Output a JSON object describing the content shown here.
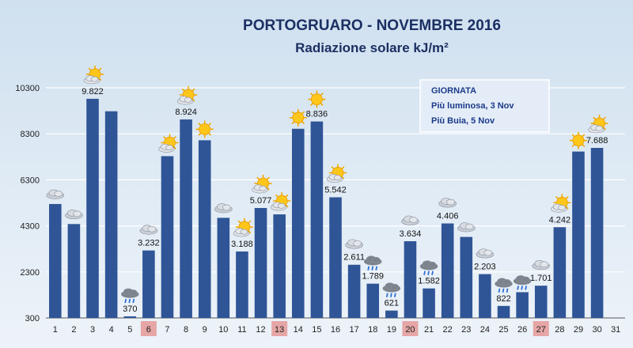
{
  "chart_data": {
    "type": "bar",
    "title": "PORTOGRUARO - NOVEMBRE 2016",
    "subtitle": "Radiazione solare kJ/m²",
    "xlabel": "",
    "ylabel": "",
    "ylim": [
      300,
      10300
    ],
    "yticks": [
      "10300",
      "8300",
      "6300",
      "4300",
      "2300",
      "300"
    ],
    "grid": true,
    "categories": [
      "1",
      "2",
      "3",
      "4",
      "5",
      "6",
      "7",
      "8",
      "9",
      "10",
      "11",
      "12",
      "13",
      "14",
      "15",
      "16",
      "17",
      "18",
      "19",
      "20",
      "21",
      "22",
      "23",
      "24",
      "25",
      "26",
      "27",
      "28",
      "29",
      "30",
      "31"
    ],
    "values": [
      5250,
      4380,
      9822,
      9280,
      370,
      3232,
      7330,
      8924,
      8020,
      4650,
      3188,
      5077,
      4800,
      8520,
      8836,
      5542,
      2611,
      1789,
      621,
      3634,
      1582,
      4406,
      3820,
      2203,
      822,
      1420,
      1701,
      4242,
      7530,
      7688,
      0
    ],
    "data_labels": [
      {
        "index": 2,
        "text": "9.822"
      },
      {
        "index": 4,
        "text": "370"
      },
      {
        "index": 5,
        "text": "3.232"
      },
      {
        "index": 7,
        "text": "8.924"
      },
      {
        "index": 10,
        "text": "3.188"
      },
      {
        "index": 11,
        "text": "5.077"
      },
      {
        "index": 14,
        "text": "8.836"
      },
      {
        "index": 15,
        "text": "5.542"
      },
      {
        "index": 16,
        "text": "2.611"
      },
      {
        "index": 17,
        "text": "1.789"
      },
      {
        "index": 18,
        "text": "621"
      },
      {
        "index": 19,
        "text": "3.634"
      },
      {
        "index": 20,
        "text": "1.582"
      },
      {
        "index": 21,
        "text": "4.406"
      },
      {
        "index": 23,
        "text": "2.203"
      },
      {
        "index": 24,
        "text": "822"
      },
      {
        "index": 26,
        "text": "1.701"
      },
      {
        "index": 27,
        "text": "4.242"
      },
      {
        "index": 29,
        "text": "7.688"
      }
    ],
    "highlighted_days": [
      "6",
      "13",
      "20",
      "27"
    ],
    "weather_icons": [
      {
        "index": 0,
        "icon": "cloud-icon"
      },
      {
        "index": 1,
        "icon": "cloud-icon"
      },
      {
        "index": 2,
        "icon": "sun-cloud-icon"
      },
      {
        "index": 4,
        "icon": "rain-cloud-icon"
      },
      {
        "index": 5,
        "icon": "cloud-icon"
      },
      {
        "index": 6,
        "icon": "sun-cloud-icon"
      },
      {
        "index": 7,
        "icon": "sun-cloud-icon"
      },
      {
        "index": 8,
        "icon": "sun-icon"
      },
      {
        "index": 9,
        "icon": "cloud-icon"
      },
      {
        "index": 10,
        "icon": "sun-cloud-icon"
      },
      {
        "index": 11,
        "icon": "sun-cloud-icon"
      },
      {
        "index": 12,
        "icon": "sun-cloud-icon"
      },
      {
        "index": 13,
        "icon": "sun-icon"
      },
      {
        "index": 14,
        "icon": "sun-icon"
      },
      {
        "index": 15,
        "icon": "sun-cloud-icon"
      },
      {
        "index": 16,
        "icon": "cloud-icon"
      },
      {
        "index": 17,
        "icon": "rain-cloud-icon"
      },
      {
        "index": 18,
        "icon": "rain-cloud-icon"
      },
      {
        "index": 19,
        "icon": "cloud-icon"
      },
      {
        "index": 20,
        "icon": "rain-cloud-icon"
      },
      {
        "index": 21,
        "icon": "cloud-icon"
      },
      {
        "index": 22,
        "icon": "cloud-icon"
      },
      {
        "index": 23,
        "icon": "cloud-icon"
      },
      {
        "index": 24,
        "icon": "rain-cloud-icon"
      },
      {
        "index": 25,
        "icon": "rain-cloud-icon"
      },
      {
        "index": 26,
        "icon": "cloud-icon"
      },
      {
        "index": 27,
        "icon": "sun-cloud-icon"
      },
      {
        "index": 28,
        "icon": "sun-icon"
      },
      {
        "index": 29,
        "icon": "sun-cloud-icon"
      }
    ],
    "note": {
      "title": "GIORNATA",
      "line1": "Più luminosa, 3 Nov",
      "line2": "Più Buia, 5 Nov"
    },
    "colors": {
      "bar": "#2f5597",
      "highlight": "#e6a6a6",
      "title": "#1b2f63",
      "note_text": "#1b3a8a"
    }
  }
}
